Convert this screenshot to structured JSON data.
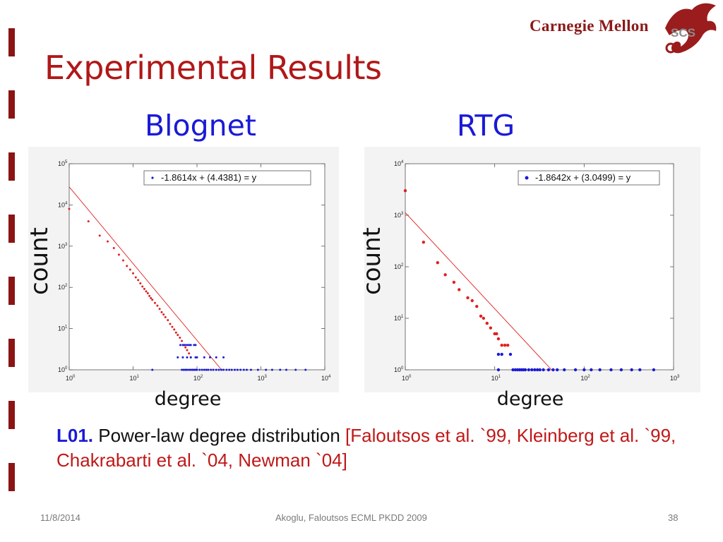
{
  "slide": {
    "title": "Experimental Results",
    "logo_text": "Carnegie Mellon",
    "logo_mark_text": "SCS",
    "left_heading": "Blognet",
    "right_heading": "RTG",
    "ylabel_left": "count",
    "ylabel_right": "count",
    "xlabel_left": "degree",
    "xlabel_right": "degree",
    "lesson_id": "L01.",
    "lesson_text": "Power-law degree distribution",
    "lesson_refs": "[Faloutsos et al. `99, Kleinberg et al. `99, Chakrabarti et al. `04, Newman `04]",
    "footer_date": "11/8/2014",
    "footer_center": "Akoglu, Faloutsos ECML PKDD 2009",
    "footer_page": "38"
  },
  "colors": {
    "title": "#b01818",
    "heading": "#1a1ad6",
    "fit_line": "#e02020",
    "fit_points": "#e02020",
    "raw_points": "#1a1ad6",
    "left_bars": "#8b1414"
  },
  "chart_data": [
    {
      "type": "scatter",
      "title": "Blognet",
      "xlabel": "degree",
      "ylabel": "count",
      "x_scale": "log",
      "y_scale": "log",
      "xlim": [
        1,
        10000
      ],
      "ylim": [
        1,
        100000
      ],
      "x_ticks": [
        1,
        10,
        100,
        1000,
        10000
      ],
      "y_ticks": [
        1,
        10,
        100,
        1000,
        10000,
        100000
      ],
      "legend": {
        "text": "-1.8614x + (4.4381) = y",
        "position": "top-right"
      },
      "fit": {
        "slope": -1.8614,
        "intercept": 4.4381
      },
      "series": [
        {
          "name": "-1.8614x + (4.4381) = y",
          "color": "#e02020",
          "points": [
            [
              1,
              8000
            ],
            [
              2,
              4000
            ],
            [
              3,
              1800
            ],
            [
              4,
              1300
            ],
            [
              5,
              900
            ],
            [
              6,
              620
            ],
            [
              7,
              450
            ],
            [
              8,
              330
            ],
            [
              9,
              270
            ],
            [
              10,
              220
            ],
            [
              11,
              175
            ],
            [
              12,
              150
            ],
            [
              13,
              125
            ],
            [
              14,
              105
            ],
            [
              15,
              92
            ],
            [
              16,
              80
            ],
            [
              17,
              72
            ],
            [
              18,
              62
            ],
            [
              19,
              55
            ],
            [
              20,
              50
            ],
            [
              22,
              42
            ],
            [
              24,
              36
            ],
            [
              26,
              30
            ],
            [
              28,
              25
            ],
            [
              30,
              22
            ],
            [
              32,
              19
            ],
            [
              35,
              16
            ],
            [
              38,
              13
            ],
            [
              41,
              11
            ],
            [
              44,
              9.5
            ],
            [
              47,
              8
            ],
            [
              50,
              7
            ],
            [
              54,
              6
            ],
            [
              58,
              5
            ],
            [
              62,
              4
            ],
            [
              66,
              3.5
            ],
            [
              70,
              3
            ],
            [
              75,
              2.5
            ],
            [
              80,
              2
            ]
          ]
        },
        {
          "name": "raw degree counts",
          "color": "#1a1ad6",
          "points": [
            [
              55,
              4
            ],
            [
              60,
              4
            ],
            [
              65,
              4
            ],
            [
              70,
              4
            ],
            [
              75,
              4
            ],
            [
              80,
              4
            ],
            [
              90,
              4
            ],
            [
              95,
              4
            ],
            [
              50,
              2
            ],
            [
              60,
              2
            ],
            [
              70,
              2
            ],
            [
              80,
              2
            ],
            [
              95,
              2
            ],
            [
              100,
              2
            ],
            [
              130,
              2
            ],
            [
              160,
              2
            ],
            [
              200,
              2
            ],
            [
              260,
              2
            ],
            [
              20,
              1
            ],
            [
              58,
              1
            ],
            [
              62,
              1
            ],
            [
              66,
              1
            ],
            [
              70,
              1
            ],
            [
              75,
              1
            ],
            [
              80,
              1
            ],
            [
              85,
              1
            ],
            [
              90,
              1
            ],
            [
              95,
              1
            ],
            [
              100,
              1
            ],
            [
              110,
              1
            ],
            [
              120,
              1
            ],
            [
              130,
              1
            ],
            [
              140,
              1
            ],
            [
              150,
              1
            ],
            [
              165,
              1
            ],
            [
              180,
              1
            ],
            [
              200,
              1
            ],
            [
              220,
              1
            ],
            [
              240,
              1
            ],
            [
              260,
              1
            ],
            [
              290,
              1
            ],
            [
              320,
              1
            ],
            [
              350,
              1
            ],
            [
              390,
              1
            ],
            [
              430,
              1
            ],
            [
              480,
              1
            ],
            [
              540,
              1
            ],
            [
              600,
              1
            ],
            [
              700,
              1
            ],
            [
              900,
              1
            ],
            [
              1200,
              1
            ],
            [
              1500,
              1
            ],
            [
              2000,
              1
            ],
            [
              2500,
              1
            ],
            [
              3500,
              1
            ],
            [
              5000,
              1
            ]
          ]
        }
      ]
    },
    {
      "type": "scatter",
      "title": "RTG",
      "xlabel": "degree",
      "ylabel": "count",
      "x_scale": "log",
      "y_scale": "log",
      "xlim": [
        1,
        1000
      ],
      "ylim": [
        1,
        10000
      ],
      "x_ticks": [
        1,
        10,
        100,
        1000
      ],
      "y_ticks": [
        1,
        10,
        100,
        1000,
        10000
      ],
      "legend": {
        "text": "-1.8642x + (3.0499) = y",
        "position": "top-right"
      },
      "fit": {
        "slope": -1.8642,
        "intercept": 3.0499
      },
      "series": [
        {
          "name": "-1.8642x + (3.0499) = y",
          "color": "#e02020",
          "points": [
            [
              1,
              3000
            ],
            [
              1.6,
              300
            ],
            [
              2.3,
              120
            ],
            [
              2.8,
              70
            ],
            [
              3.5,
              50
            ],
            [
              4,
              36
            ],
            [
              5,
              25
            ],
            [
              5.6,
              22
            ],
            [
              6.3,
              17
            ],
            [
              7,
              11
            ],
            [
              7.5,
              10
            ],
            [
              8.2,
              8
            ],
            [
              9,
              6.5
            ],
            [
              10,
              5
            ],
            [
              10.5,
              5
            ],
            [
              11,
              4
            ],
            [
              12,
              3
            ],
            [
              13,
              3
            ],
            [
              14,
              3
            ]
          ]
        },
        {
          "name": "raw degree counts",
          "color": "#1a1ad6",
          "points": [
            [
              11,
              2
            ],
            [
              12,
              2
            ],
            [
              15,
              2
            ],
            [
              11,
              1
            ],
            [
              16,
              1
            ],
            [
              17,
              1
            ],
            [
              18,
              1
            ],
            [
              19,
              1
            ],
            [
              20,
              1
            ],
            [
              21,
              1
            ],
            [
              22,
              1
            ],
            [
              24,
              1
            ],
            [
              26,
              1
            ],
            [
              28,
              1
            ],
            [
              30,
              1
            ],
            [
              32,
              1
            ],
            [
              35,
              1
            ],
            [
              40,
              1
            ],
            [
              45,
              1
            ],
            [
              50,
              1
            ],
            [
              60,
              1
            ],
            [
              80,
              1
            ],
            [
              100,
              1
            ],
            [
              120,
              1
            ],
            [
              150,
              1
            ],
            [
              200,
              1
            ],
            [
              260,
              1
            ],
            [
              340,
              1
            ],
            [
              420,
              1
            ],
            [
              600,
              1
            ]
          ]
        }
      ]
    }
  ]
}
